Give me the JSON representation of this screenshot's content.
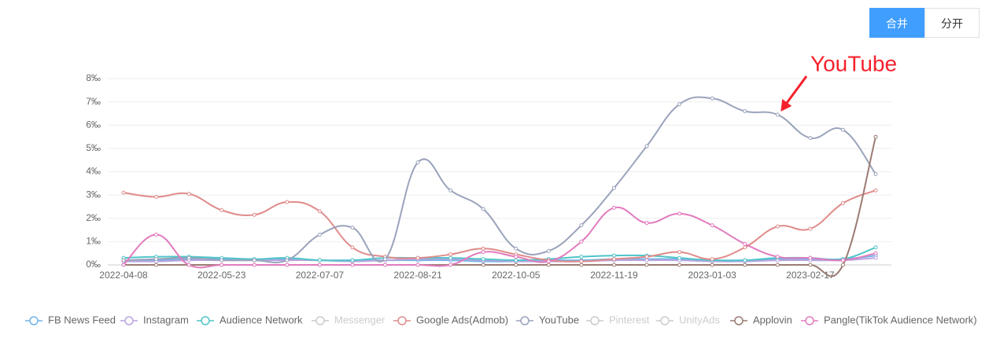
{
  "buttons": [
    "合并",
    "分开"
  ],
  "active_button": 0,
  "chart_data": {
    "type": "line",
    "smooth": true,
    "annotation": {
      "text": "YouTube",
      "color": "#f5222d",
      "series_index": 5,
      "point_index": 20
    },
    "categories": [
      "2022-04-08",
      null,
      null,
      "2022-05-23",
      null,
      null,
      "2022-07-07",
      null,
      null,
      "2022-08-21",
      null,
      null,
      "2022-10-05",
      null,
      null,
      "2022-11-19",
      null,
      null,
      "2023-01-03",
      null,
      null,
      "2023-02-17",
      null,
      null
    ],
    "ylim": [
      0,
      8
    ],
    "yticks": [
      {
        "value": 0,
        "label": "0‰"
      },
      {
        "value": 1,
        "label": "1‰"
      },
      {
        "value": 2,
        "label": "2‰"
      },
      {
        "value": 3,
        "label": "3‰"
      },
      {
        "value": 4,
        "label": "4‰"
      },
      {
        "value": 5,
        "label": "5‰"
      },
      {
        "value": 6,
        "label": "6‰"
      },
      {
        "value": 7,
        "label": "7‰"
      },
      {
        "value": 8,
        "label": "8‰"
      }
    ],
    "grid": true,
    "series": [
      {
        "name": "FB News Feed",
        "color": "#73b4e6",
        "values": [
          0.2,
          0.2,
          0.25,
          0.25,
          0.2,
          0.25,
          0.2,
          0.2,
          0.2,
          0.2,
          0.2,
          0.15,
          0.15,
          0.2,
          0.2,
          0.25,
          0.25,
          0.25,
          0.2,
          0.2,
          0.25,
          0.25,
          0.25,
          0.4
        ]
      },
      {
        "name": "Instagram",
        "color": "#b9a4e0",
        "values": [
          0.15,
          0.15,
          0.2,
          0.2,
          0.2,
          0.2,
          0.2,
          0.15,
          0.2,
          0.25,
          0.25,
          0.2,
          0.15,
          0.15,
          0.15,
          0.2,
          0.2,
          0.2,
          0.15,
          0.15,
          0.2,
          0.2,
          0.2,
          0.3
        ]
      },
      {
        "name": "Audience Network",
        "color": "#4fc5c9",
        "values": [
          0.3,
          0.35,
          0.35,
          0.3,
          0.25,
          0.3,
          0.2,
          0.2,
          0.3,
          0.3,
          0.3,
          0.25,
          0.2,
          0.25,
          0.35,
          0.4,
          0.4,
          0.3,
          0.2,
          0.2,
          0.3,
          0.3,
          0.25,
          0.75
        ]
      },
      {
        "name": "Messenger",
        "color": "#cccccc",
        "hidden": true
      },
      {
        "name": "Google Ads(Admob)",
        "color": "#e08b8b",
        "values": [
          3.1,
          2.92,
          3.05,
          2.35,
          2.15,
          2.7,
          2.3,
          0.75,
          0.35,
          0.3,
          0.45,
          0.7,
          0.45,
          0.2,
          0.15,
          0.25,
          0.35,
          0.55,
          0.25,
          0.75,
          1.65,
          1.55,
          2.65,
          3.2
        ]
      },
      {
        "name": "YouTube",
        "color": "#9aa3bb",
        "values": [
          0.2,
          0.25,
          0.3,
          0.2,
          0.2,
          0.2,
          1.3,
          1.6,
          0.25,
          4.4,
          3.2,
          2.4,
          0.7,
          0.6,
          1.7,
          3.3,
          5.1,
          6.9,
          7.15,
          6.6,
          6.45,
          5.45,
          5.8,
          3.9
        ]
      },
      {
        "name": "Pinterest",
        "color": "#cccccc",
        "hidden": true
      },
      {
        "name": "UnityAds",
        "color": "#cccccc",
        "hidden": true
      },
      {
        "name": "Applovin",
        "color": "#9b7b74",
        "values": [
          0,
          0,
          0,
          0,
          0,
          0,
          0,
          0,
          0,
          0,
          0,
          0,
          0,
          0,
          0,
          0,
          0,
          0,
          0,
          0,
          0,
          0,
          0,
          5.5
        ]
      },
      {
        "name": "Pangle(TikTok Audience Network)",
        "color": "#e27bbd",
        "values": [
          0,
          1.3,
          0,
          0,
          0,
          0,
          0,
          0,
          0,
          0,
          0,
          0.55,
          0.35,
          0.15,
          1.0,
          2.45,
          1.8,
          2.2,
          1.7,
          0.9,
          0.35,
          0.3,
          0.2,
          0.5
        ]
      }
    ]
  }
}
